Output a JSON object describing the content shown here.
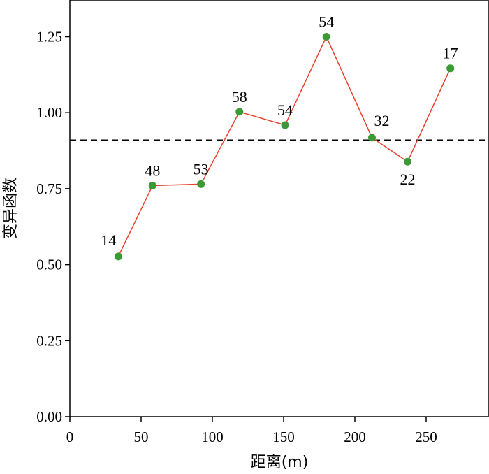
{
  "chart_data": {
    "type": "line",
    "xlabel": "距离(m)",
    "ylabel": "变异函数",
    "xlim": [
      0,
      295
    ],
    "ylim": [
      0,
      1.37
    ],
    "xticks": [
      0,
      50,
      100,
      150,
      200,
      250
    ],
    "yticks": [
      0.0,
      0.25,
      0.5,
      0.75,
      1.0,
      1.25
    ],
    "xtick_labels": [
      "0",
      "50",
      "100",
      "150",
      "200",
      "250"
    ],
    "ytick_labels": [
      "0.00",
      "0.25",
      "0.50",
      "0.75",
      "1.00",
      "1.25"
    ],
    "reference_line": {
      "y": 0.91,
      "style": "dashed",
      "color": "#000000"
    },
    "series": [
      {
        "x": [
          34,
          58,
          92,
          119,
          151,
          180,
          212,
          237,
          267
        ],
        "y": [
          0.527,
          0.76,
          0.765,
          1.003,
          0.959,
          1.25,
          0.918,
          0.839,
          1.146
        ],
        "labels": [
          "14",
          "48",
          "53",
          "58",
          "54",
          "54",
          "32",
          "22",
          "17"
        ],
        "line_color": "#e8402c",
        "marker_color": "#3a9a35"
      }
    ],
    "grid": false,
    "legend": "none"
  }
}
